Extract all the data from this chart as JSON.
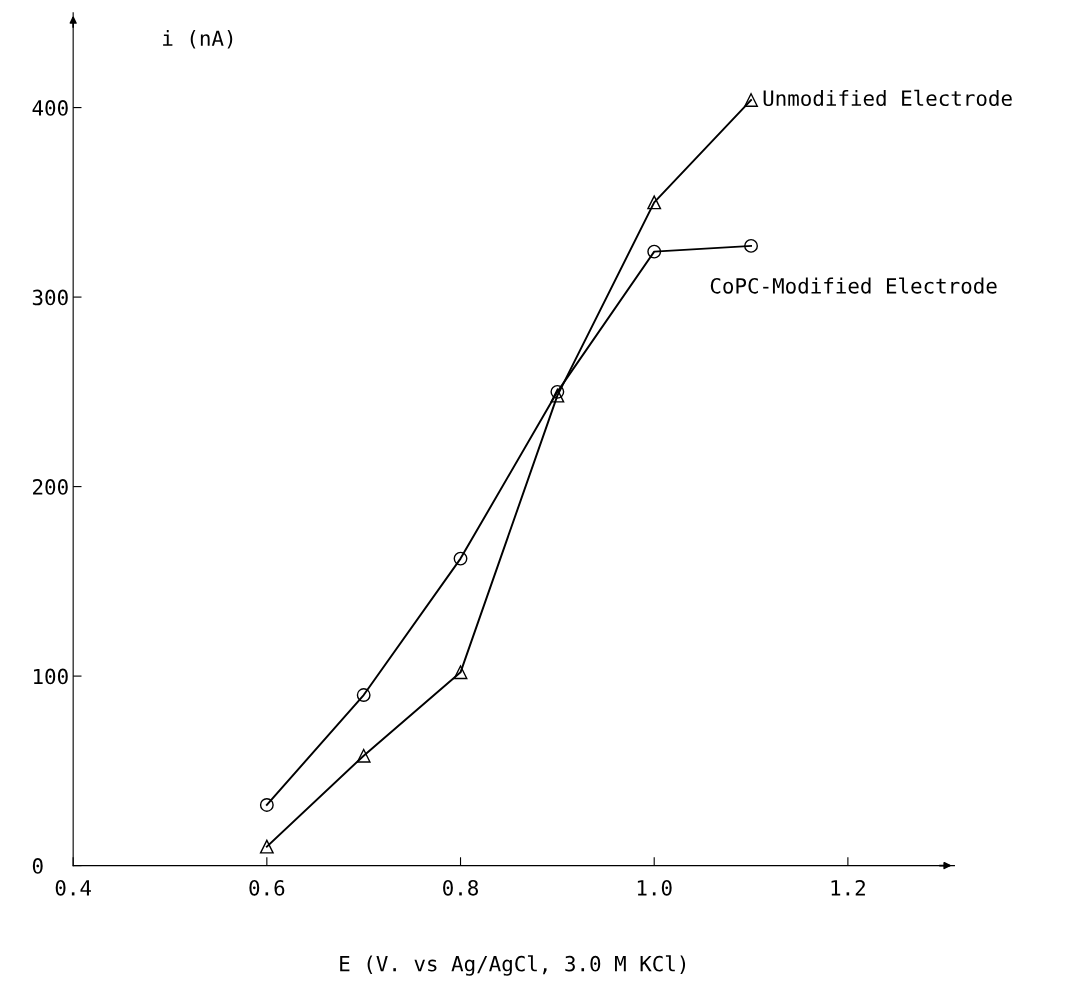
{
  "chart_data": {
    "type": "line",
    "xlabel": "E (V. vs Ag/AgCl, 3.0 M KCl)",
    "ylabel": "i (nA)",
    "series": [
      {
        "name": "Unmodified Electrode",
        "color": "#000000",
        "marker": "triangle",
        "x": [
          0.6,
          0.7,
          0.8,
          0.9,
          1.0,
          1.1
        ],
        "values": [
          10,
          58,
          102,
          248,
          350,
          404
        ]
      },
      {
        "name": "CoPC-Modified Electrode",
        "color": "#000000",
        "marker": "circle",
        "x": [
          0.6,
          0.7,
          0.8,
          0.9,
          1.0,
          1.1
        ],
        "values": [
          32,
          90,
          162,
          250,
          324,
          327
        ]
      }
    ],
    "xlim": [
      0.4,
      1.31
    ],
    "ylim": [
      0,
      450
    ],
    "xticks": [
      {
        "value": 0.4,
        "label": "0.4"
      },
      {
        "value": 0.6,
        "label": "0.6"
      },
      {
        "value": 0.8,
        "label": "0.8"
      },
      {
        "value": 1.0,
        "label": "1.0"
      },
      {
        "value": 1.2,
        "label": "1.2"
      }
    ],
    "yticks": [
      0,
      100,
      200,
      300,
      400
    ],
    "grid": false,
    "legend": false,
    "line_style": "solid"
  }
}
